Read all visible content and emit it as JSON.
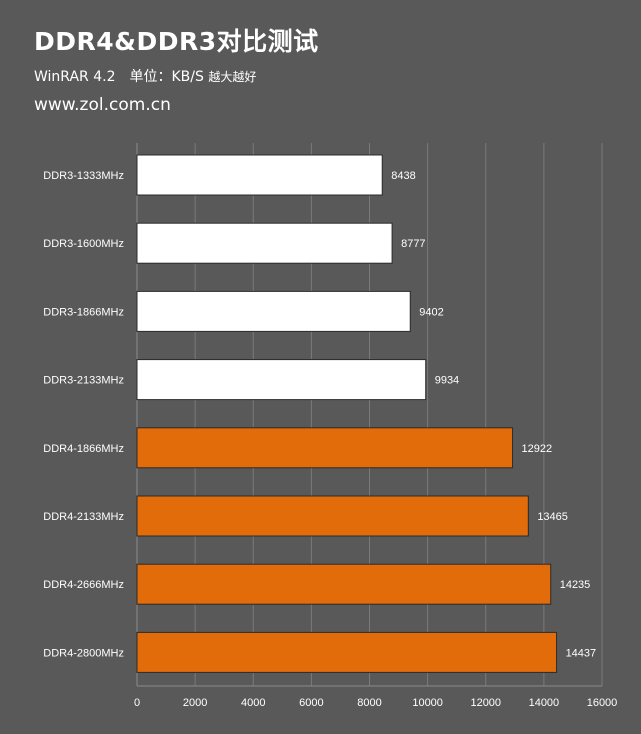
{
  "header": {
    "title": "DDR4&DDR3对比测试",
    "subtitle_main": "WinRAR 4.2　单位：KB/S",
    "subtitle_note": "越大越好",
    "source": "www.zol.com.cn"
  },
  "colors": {
    "background": "#595959",
    "ddr3_bar": "#ffffff",
    "ddr4_bar": "#e36c0a",
    "gridline": "#7a7a7a",
    "text": "#ffffff"
  },
  "chart_data": {
    "type": "bar",
    "orientation": "horizontal",
    "title": "DDR4&DDR3对比测试",
    "subtitle": "WinRAR 4.2　单位：KB/S 越大越好",
    "categories": [
      "DDR3-1333MHz",
      "DDR3-1600MHz",
      "DDR3-1866MHz",
      "DDR3-2133MHz",
      "DDR4-1866MHz",
      "DDR4-2133MHz",
      "DDR4-2666MHz",
      "DDR4-2800MHz"
    ],
    "values": [
      8438,
      8777,
      9402,
      9934,
      12922,
      13465,
      14235,
      14437
    ],
    "bar_colors": [
      "#ffffff",
      "#ffffff",
      "#ffffff",
      "#ffffff",
      "#e36c0a",
      "#e36c0a",
      "#e36c0a",
      "#e36c0a"
    ],
    "xlim": [
      0,
      16000
    ],
    "xticks": [
      0,
      2000,
      4000,
      6000,
      8000,
      10000,
      12000,
      14000,
      16000
    ],
    "xlabel": "",
    "ylabel": "",
    "grid": true,
    "data_labels": true
  }
}
